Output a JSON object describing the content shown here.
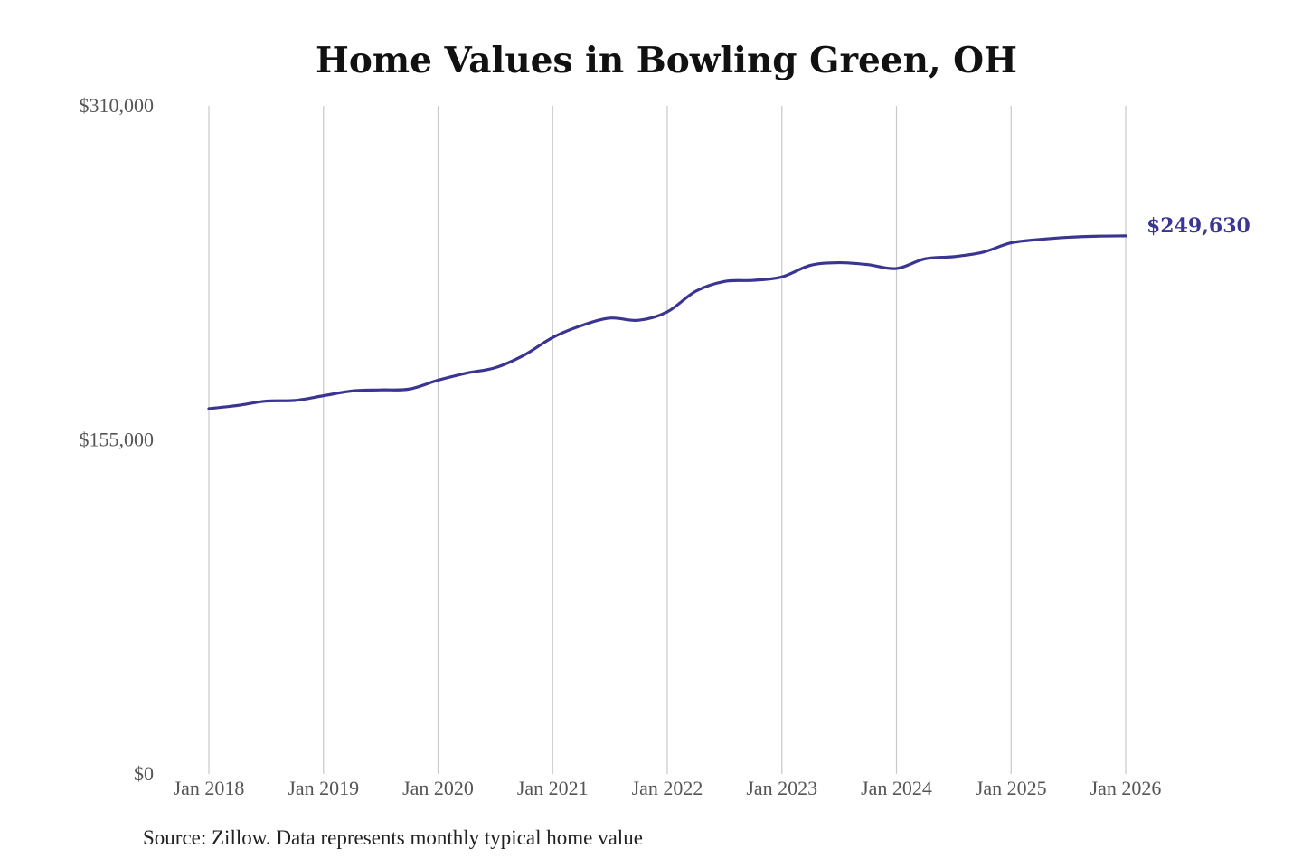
{
  "chart_data": {
    "type": "line",
    "title": "Home Values in Bowling Green, OH",
    "xlabel": "",
    "ylabel": "",
    "ylim": [
      0,
      310000
    ],
    "y_ticks": [
      "$310,000",
      "$155,000",
      "$0"
    ],
    "y_tick_values": [
      310000,
      155000,
      0
    ],
    "x_ticks": [
      "Jan 2018",
      "Jan 2019",
      "Jan 2020",
      "Jan 2021",
      "Jan 2022",
      "Jan 2023",
      "Jan 2024",
      "Jan 2025",
      "Jan 2026"
    ],
    "x_tick_years": [
      2018,
      2019,
      2020,
      2021,
      2022,
      2023,
      2024,
      2025,
      2026
    ],
    "grid": "vertical",
    "line_color": "#3a3493",
    "end_label": "$249,630",
    "series": [
      {
        "x": [
          2018.0,
          2018.25,
          2018.5,
          2018.75,
          2019.0,
          2019.25,
          2019.5,
          2019.75,
          2020.0,
          2020.25,
          2020.5,
          2020.75,
          2021.0,
          2021.25,
          2021.5,
          2021.75,
          2022.0,
          2022.25,
          2022.5,
          2022.75,
          2023.0,
          2023.25,
          2023.5,
          2023.75,
          2024.0,
          2024.25,
          2024.5,
          2024.75,
          2025.0,
          2025.25,
          2025.5,
          2025.75,
          2026.0
        ],
        "values": [
          169500,
          171000,
          173000,
          173300,
          175500,
          177700,
          178200,
          178600,
          182700,
          186000,
          188500,
          194300,
          202500,
          208000,
          211500,
          210500,
          214400,
          224000,
          228500,
          229000,
          230600,
          236000,
          237200,
          236300,
          234500,
          239000,
          240000,
          242000,
          246400,
          248000,
          249000,
          249500,
          249630
        ]
      }
    ]
  },
  "source_note": "Source: Zillow. Data represents monthly typical home value"
}
